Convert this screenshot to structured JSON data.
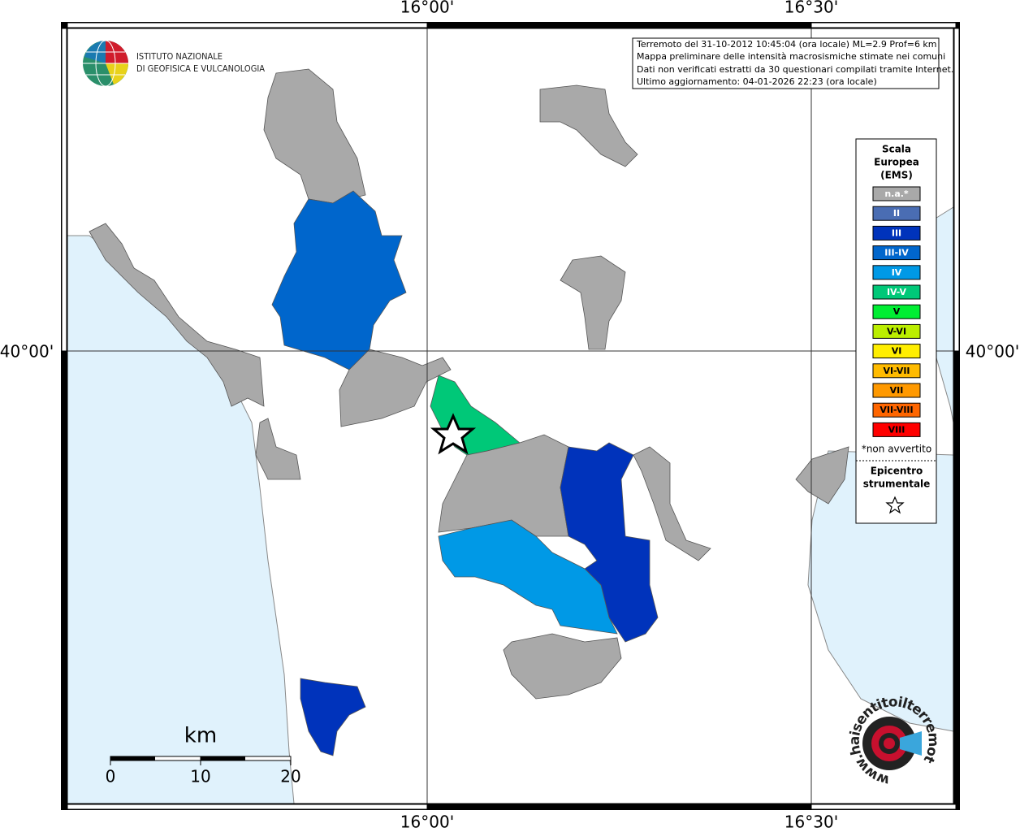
{
  "coordinates": {
    "top": [
      "16°00'",
      "16°30'"
    ],
    "bottom": [
      "16°00'",
      "16°30'"
    ],
    "left": [
      "40°00'"
    ],
    "right": [
      "40°00'"
    ]
  },
  "institute_logo": [
    "ISTITUTO NAZIONALE",
    "DI GEOFISICA E VULCANOLOGIA"
  ],
  "info": [
    "Terremoto del 31-10-2012 10:45:04 (ora locale) ML=2.9 Prof=6 km",
    "Mappa preliminare delle intensità macrosismiche stimate nei comuni",
    "Dati non verificati estratti da 30 questionari compilati tramite Internet.",
    "Ultimo aggiornamento: 04-01-2026 22:23 (ora locale)"
  ],
  "legend": {
    "title": [
      "Scala",
      "Europea",
      "(EMS)"
    ],
    "items": [
      {
        "label": "n.a.*",
        "color": "#a9a9a9"
      },
      {
        "label": "II",
        "color": "#4a6db3"
      },
      {
        "label": "III",
        "color": "#0033bb"
      },
      {
        "label": "III-IV",
        "color": "#0066cc"
      },
      {
        "label": "IV",
        "color": "#0099e6"
      },
      {
        "label": "IV-V",
        "color": "#00c878"
      },
      {
        "label": "V",
        "color": "#00ee33"
      },
      {
        "label": "V-VI",
        "color": "#bbee00"
      },
      {
        "label": "VI",
        "color": "#ffee00"
      },
      {
        "label": "VI-VII",
        "color": "#ffbb00"
      },
      {
        "label": "VII",
        "color": "#ff9900"
      },
      {
        "label": "VII-VIII",
        "color": "#ff6600"
      },
      {
        "label": "VIII",
        "color": "#ff0000"
      }
    ],
    "note": "*non avvertito",
    "epicenter": [
      "Epicentro",
      "strumentale"
    ]
  },
  "scale_bar": {
    "unit": "km",
    "ticks": [
      "0",
      "10",
      "20"
    ]
  },
  "site_logo": "www.haisentitoilterremoto.it"
}
